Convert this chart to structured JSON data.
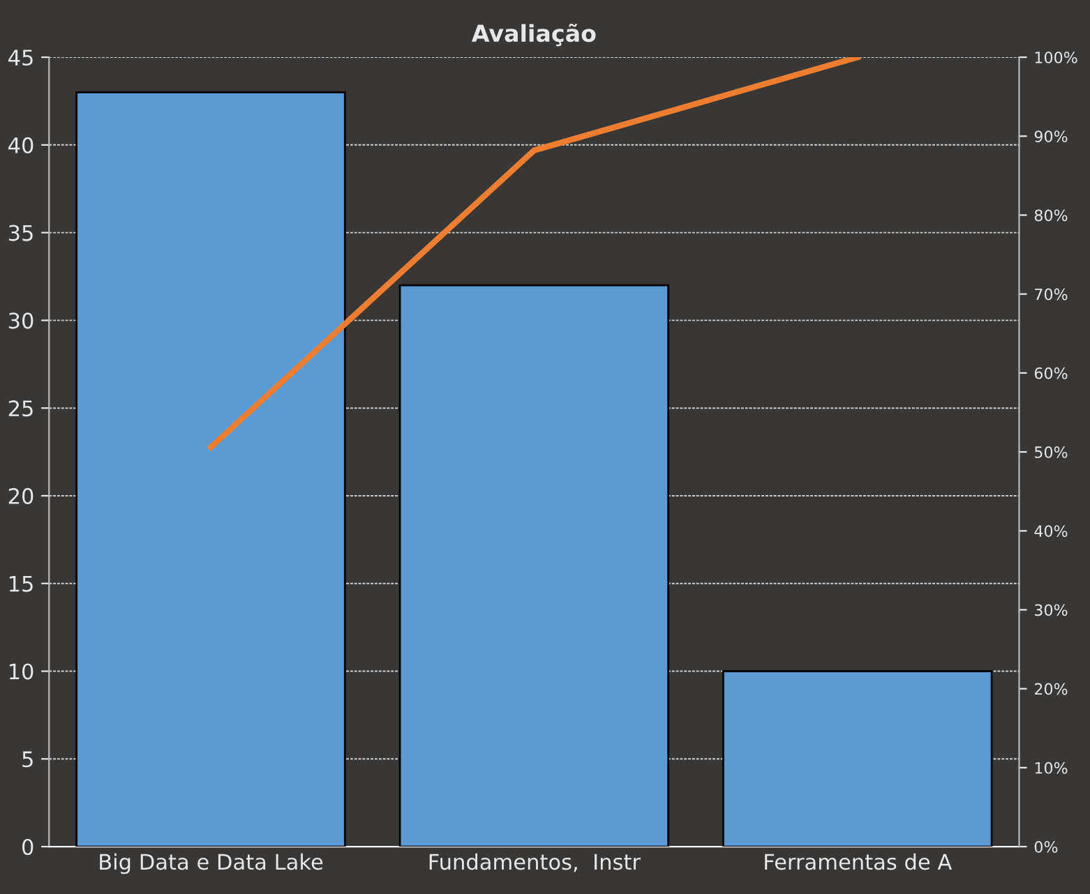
{
  "chart_data": {
    "type": "bar",
    "title": "Avaliação",
    "categories": [
      "Big Data e Data Lake",
      "Fundamentos,  Instr",
      "Ferramentas de A"
    ],
    "series": [
      {
        "color": "#5b9bd5",
        "values": [
          43,
          32,
          10
        ]
      },
      {
        "type": "line",
        "color": "#ed7d31",
        "axis": "y2",
        "values": [
          50.6,
          88.2,
          100
        ]
      }
    ],
    "ylim": [
      0,
      45
    ],
    "yticks": [
      0,
      5,
      10,
      15,
      20,
      25,
      30,
      35,
      40,
      45
    ],
    "y2lim": [
      0,
      100
    ],
    "y2ticks": [
      {
        "value": 0,
        "label": "0%"
      },
      {
        "value": 10,
        "label": "10%"
      },
      {
        "value": 20,
        "label": "20%"
      },
      {
        "value": 30,
        "label": "30%"
      },
      {
        "value": 40,
        "label": "40%"
      },
      {
        "value": 50,
        "label": "50%"
      },
      {
        "value": 60,
        "label": "60%"
      },
      {
        "value": 70,
        "label": "70%"
      },
      {
        "value": 80,
        "label": "80%"
      },
      {
        "value": 90,
        "label": "90%"
      },
      {
        "value": 100,
        "label": "100%"
      }
    ],
    "grid": "y",
    "marker": "none",
    "line_style": "solid"
  }
}
